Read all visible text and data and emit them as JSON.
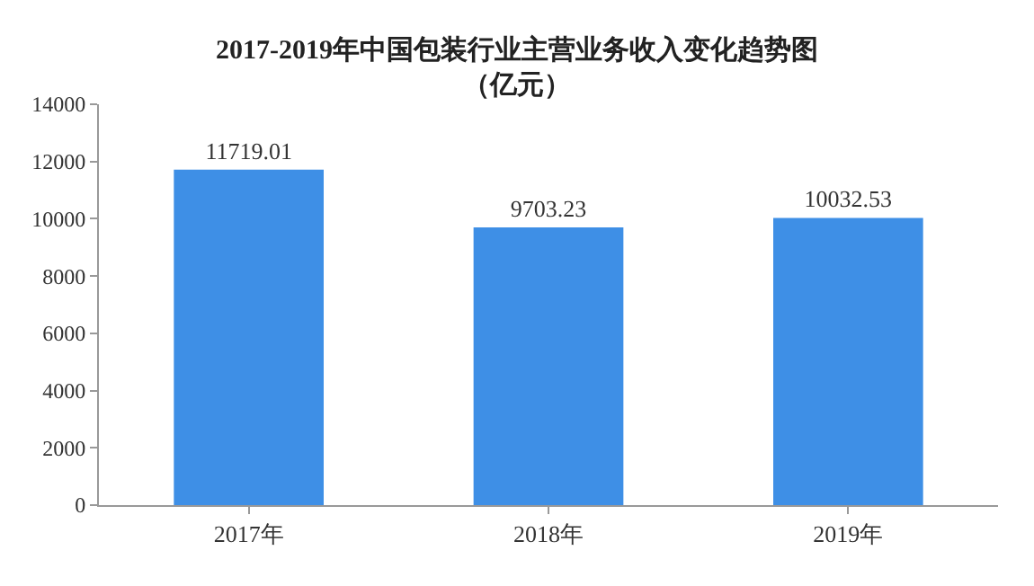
{
  "chart_data": {
    "type": "bar",
    "title": "2017-2019年中国包装行业主营业务收入变化趋势图",
    "subtitle": "（亿元）",
    "categories": [
      "2017年",
      "2018年",
      "2019年"
    ],
    "values": [
      11719.01,
      9703.23,
      10032.53
    ],
    "color": "#3e8fe6",
    "ylim": [
      0,
      14000
    ],
    "yticks": [
      0,
      2000,
      4000,
      6000,
      8000,
      10000,
      12000,
      14000
    ],
    "grid": false,
    "data_labels": true
  }
}
